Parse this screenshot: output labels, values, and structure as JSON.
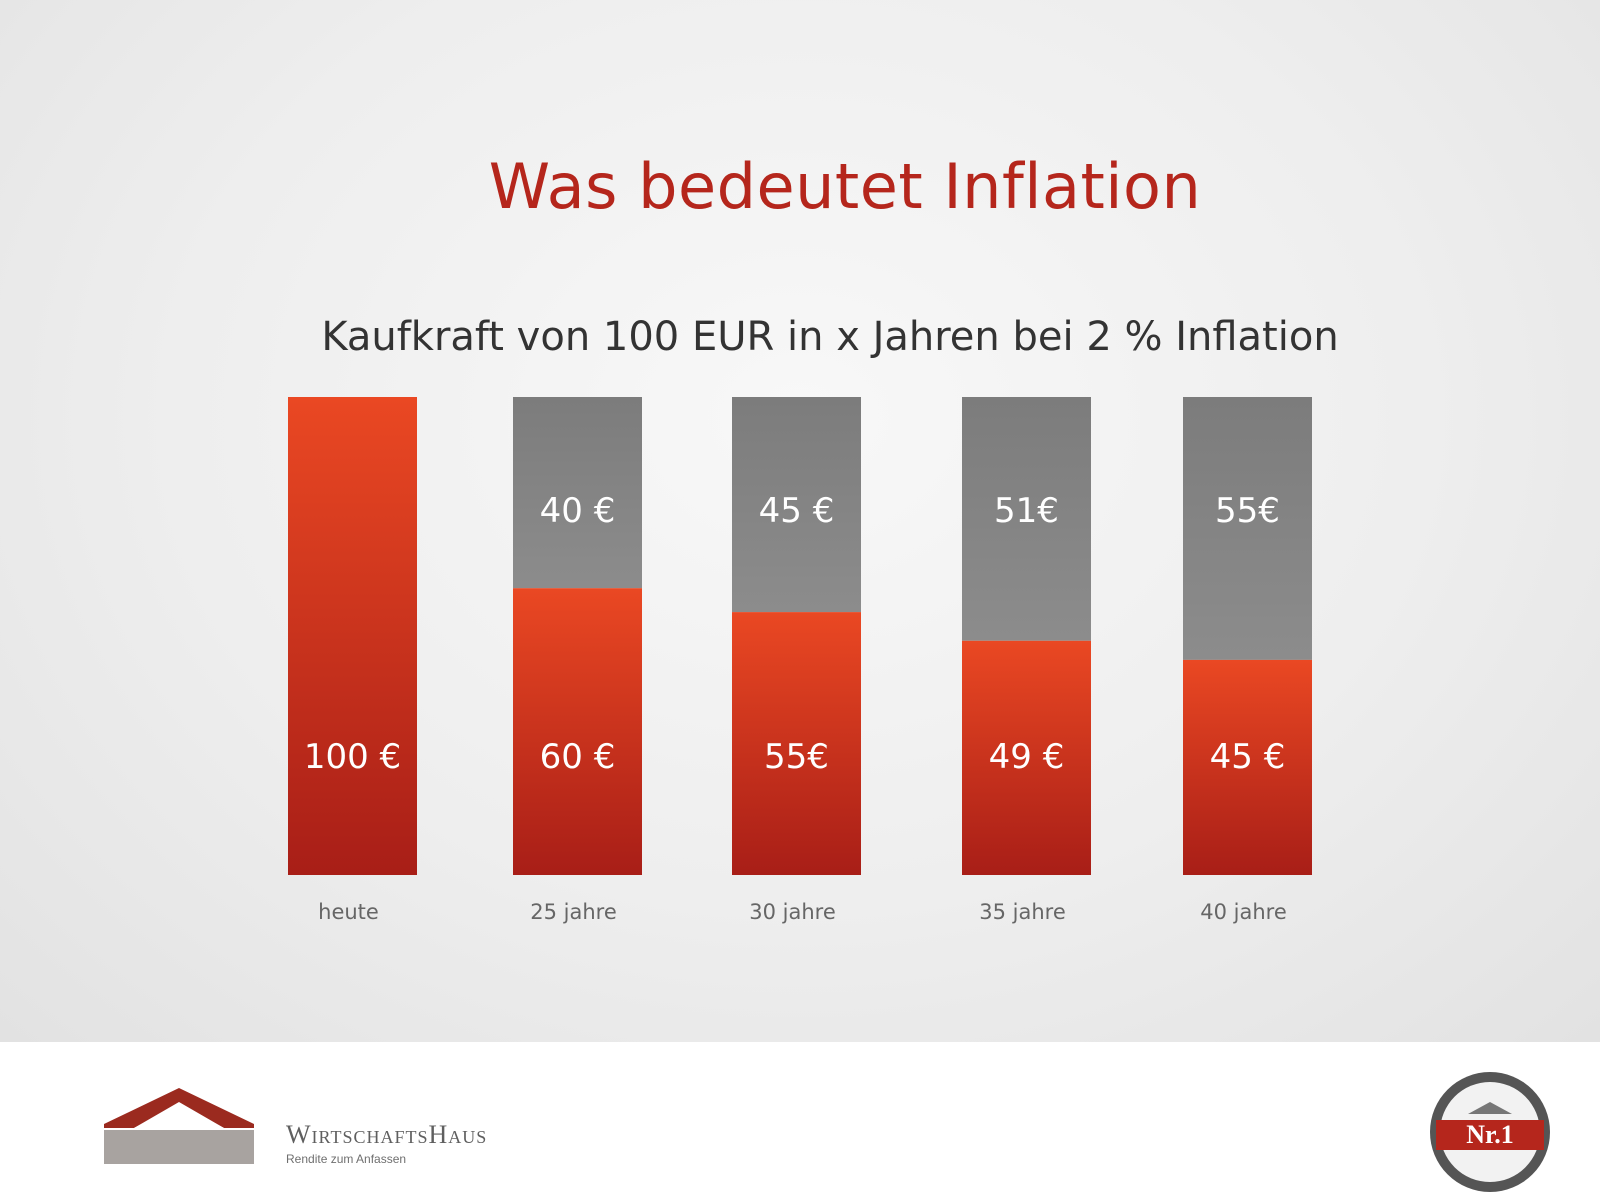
{
  "title": "Was bedeutet Inflation",
  "colors": {
    "title": "#b5261c",
    "red_top": "#ea4823",
    "red_bottom": "#a81e17",
    "gray_top": "#7c7c7c",
    "gray_bottom": "#8c8c8c"
  },
  "chart_data": {
    "type": "bar",
    "subtitle": "Kaufkraft von 100 EUR in x Jahren bei 2 % Inflation",
    "categories": [
      "heute",
      "25 jahre",
      "30 jahre",
      "35 jahre",
      "40 jahre"
    ],
    "series": [
      {
        "values": [
          100,
          60,
          55,
          49,
          45
        ],
        "labels": [
          "100 €",
          "60 €",
          "55€",
          "49 €",
          "45 €"
        ]
      },
      {
        "values": [
          0,
          40,
          45,
          51,
          55
        ],
        "labels": [
          "",
          "40 €",
          "45 €",
          "51€",
          "55€"
        ]
      }
    ],
    "stacked": true,
    "ylim": [
      0,
      100
    ],
    "grid": false
  },
  "footer": {
    "brand": "WirtschaftsHaus",
    "tagline": "Rendite zum Anfassen",
    "badge_text": "Nr.1"
  }
}
